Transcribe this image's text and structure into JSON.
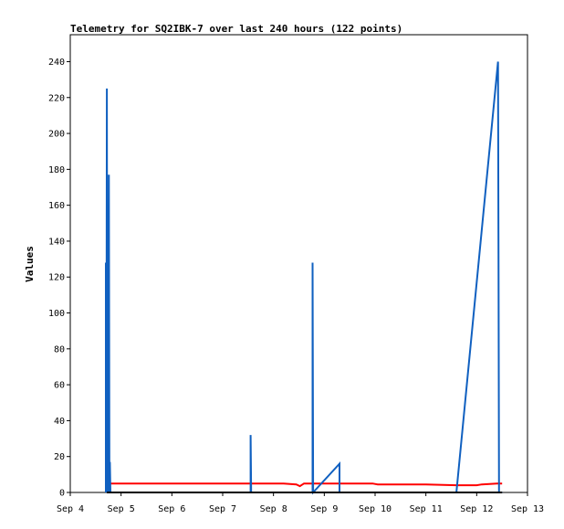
{
  "chart_data": {
    "type": "line",
    "title": "Telemetry for SQ2IBK-7 over last 240 hours (122 points)",
    "ylabel": "Values",
    "xlabel": "",
    "xlim": [
      4.0,
      13.0
    ],
    "ylim": [
      0,
      255
    ],
    "y_ticks": [
      0,
      20,
      40,
      60,
      80,
      100,
      120,
      140,
      160,
      180,
      200,
      220,
      240
    ],
    "x_ticks": [
      {
        "label": "Sep 4",
        "x": 4
      },
      {
        "label": "Sep 5",
        "x": 5
      },
      {
        "label": "Sep 6",
        "x": 6
      },
      {
        "label": "Sep 7",
        "x": 7
      },
      {
        "label": "Sep 8",
        "x": 8
      },
      {
        "label": "Sep 9",
        "x": 9
      },
      {
        "label": "Sep 10",
        "x": 10
      },
      {
        "label": "Sep 11",
        "x": 11
      },
      {
        "label": "Sep 12",
        "x": 12
      },
      {
        "label": "Sep 13",
        "x": 13
      }
    ],
    "grid": false,
    "legend": "none",
    "series": [
      {
        "color": "#ff0000",
        "points": [
          [
            4.72,
            5
          ],
          [
            6.5,
            5
          ],
          [
            8.2,
            5
          ],
          [
            8.45,
            4.5
          ],
          [
            8.52,
            3.5
          ],
          [
            8.6,
            5
          ],
          [
            9.0,
            5
          ],
          [
            9.95,
            5
          ],
          [
            10.05,
            4.5
          ],
          [
            11.0,
            4.5
          ],
          [
            11.6,
            4
          ],
          [
            12.0,
            4
          ],
          [
            12.1,
            4.5
          ],
          [
            12.4,
            5
          ],
          [
            12.5,
            5
          ]
        ]
      },
      {
        "color": "#1060c0",
        "points": [
          [
            4.7,
            0
          ],
          [
            4.7,
            128
          ],
          [
            4.71,
            0
          ],
          [
            4.72,
            225
          ],
          [
            4.73,
            0
          ],
          [
            4.74,
            73
          ],
          [
            4.75,
            0
          ],
          [
            4.76,
            177
          ],
          [
            4.77,
            0
          ],
          [
            4.78,
            17
          ],
          [
            4.79,
            0
          ],
          [
            4.8,
            0
          ],
          [
            7.55,
            0
          ],
          [
            7.55,
            32
          ],
          [
            7.56,
            0
          ],
          [
            8.77,
            0
          ],
          [
            8.77,
            128
          ],
          [
            8.78,
            0
          ],
          [
            9.3,
            16
          ],
          [
            9.3,
            0
          ],
          [
            11.6,
            0
          ],
          [
            12.42,
            240
          ],
          [
            12.43,
            120
          ],
          [
            12.44,
            0
          ],
          [
            12.5,
            0
          ]
        ]
      },
      {
        "color": "#000000",
        "points": [
          [
            4.72,
            0
          ],
          [
            12.5,
            0
          ]
        ]
      }
    ]
  }
}
